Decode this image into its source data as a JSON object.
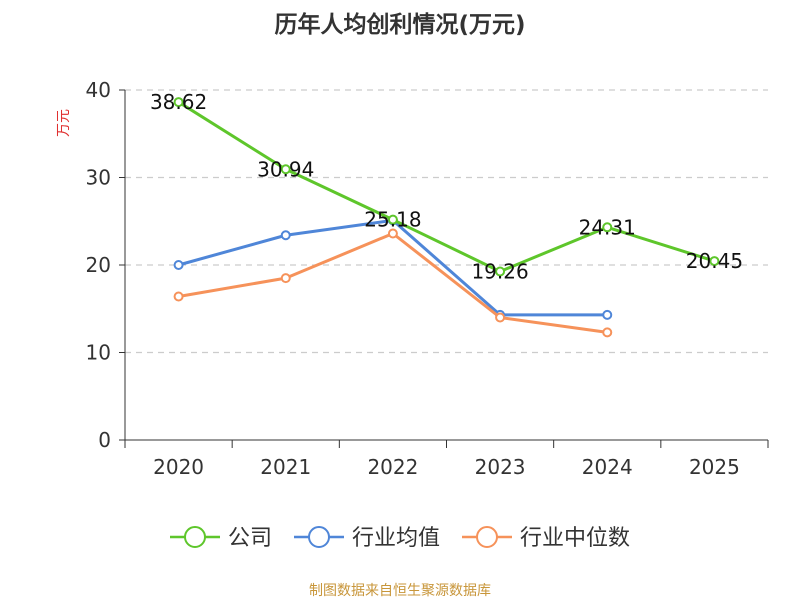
{
  "chart_data": {
    "type": "line",
    "title": "历年人均创利情况(万元)",
    "ylabel": "万元",
    "xlabel": "",
    "ylim": [
      0,
      40
    ],
    "yticks": [
      0,
      10,
      20,
      30,
      40
    ],
    "categories": [
      "2020",
      "2021",
      "2022",
      "2023",
      "2024",
      "2025"
    ],
    "series": [
      {
        "name": "公司",
        "color": "#5ec62b",
        "values": [
          38.62,
          30.94,
          25.18,
          19.26,
          24.31,
          20.45
        ],
        "labels": [
          "38.62",
          "30.94",
          "25.18",
          "19.26",
          "24.31",
          "20.45"
        ]
      },
      {
        "name": "行业均值",
        "color": "#4f86d8",
        "values": [
          20.0,
          23.4,
          25.1,
          14.3,
          14.3,
          null
        ]
      },
      {
        "name": "行业中位数",
        "color": "#f6925a",
        "values": [
          16.4,
          18.5,
          23.6,
          14.0,
          12.3,
          null
        ]
      }
    ],
    "grid": true,
    "legend": "bottom"
  },
  "footer": {
    "source": "制图数据来自恒生聚源数据库",
    "source_color": "#c8963a"
  },
  "colors": {
    "axis": "#333333",
    "grid": "#cccccc",
    "ylabel": "#e03030"
  }
}
